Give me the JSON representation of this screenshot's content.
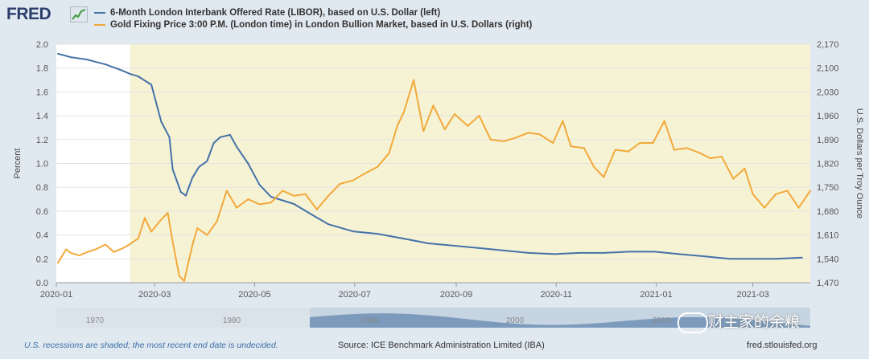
{
  "header": {
    "logo": "FRED",
    "logo_icon": "chart-trend-icon"
  },
  "chart_data": {
    "type": "line",
    "title": "",
    "xlabel": "",
    "ylabel": "Percent",
    "ylabel_right": "U.S. Dollars per Troy Ounce",
    "ylim": [
      0,
      2.0
    ],
    "ylim_right": [
      1470,
      2170
    ],
    "yticks": [
      "0.0",
      "0.2",
      "0.4",
      "0.6",
      "0.8",
      "1.0",
      "1.2",
      "1.4",
      "1.6",
      "1.8",
      "2.0"
    ],
    "yticks_right": [
      "1,470",
      "1,540",
      "1,610",
      "1,680",
      "1,750",
      "1,820",
      "1,890",
      "1,960",
      "2,030",
      "2,100",
      "2,170"
    ],
    "x_ticks": [
      "2020-01",
      "2020-03",
      "2020-05",
      "2020-07",
      "2020-09",
      "2020-11",
      "2021-01",
      "2021-03"
    ],
    "x_range": [
      "2020-01-01",
      "2021-04-05"
    ],
    "recession": [
      "2020-02-15",
      "2021-04-05"
    ],
    "legend_position": "top-left",
    "grid": true,
    "series": [
      {
        "name": "6-Month London Interbank Offered Rate (LIBOR), based on U.S. Dollar (left)",
        "axis": "left",
        "color": "#4572a7",
        "points": [
          [
            "2020-01-02",
            1.92
          ],
          [
            "2020-01-10",
            1.89
          ],
          [
            "2020-01-20",
            1.87
          ],
          [
            "2020-01-31",
            1.83
          ],
          [
            "2020-02-10",
            1.78
          ],
          [
            "2020-02-15",
            1.75
          ],
          [
            "2020-02-20",
            1.73
          ],
          [
            "2020-02-28",
            1.66
          ],
          [
            "2020-03-05",
            1.35
          ],
          [
            "2020-03-10",
            1.22
          ],
          [
            "2020-03-12",
            0.95
          ],
          [
            "2020-03-17",
            0.76
          ],
          [
            "2020-03-20",
            0.73
          ],
          [
            "2020-03-24",
            0.88
          ],
          [
            "2020-03-28",
            0.97
          ],
          [
            "2020-04-02",
            1.02
          ],
          [
            "2020-04-06",
            1.17
          ],
          [
            "2020-04-10",
            1.22
          ],
          [
            "2020-04-16",
            1.24
          ],
          [
            "2020-04-20",
            1.14
          ],
          [
            "2020-04-27",
            1.0
          ],
          [
            "2020-05-04",
            0.82
          ],
          [
            "2020-05-11",
            0.72
          ],
          [
            "2020-05-18",
            0.69
          ],
          [
            "2020-05-25",
            0.66
          ],
          [
            "2020-06-05",
            0.57
          ],
          [
            "2020-06-15",
            0.49
          ],
          [
            "2020-06-30",
            0.43
          ],
          [
            "2020-07-15",
            0.41
          ],
          [
            "2020-07-31",
            0.37
          ],
          [
            "2020-08-15",
            0.33
          ],
          [
            "2020-08-31",
            0.31
          ],
          [
            "2020-09-15",
            0.29
          ],
          [
            "2020-09-30",
            0.27
          ],
          [
            "2020-10-15",
            0.25
          ],
          [
            "2020-10-31",
            0.24
          ],
          [
            "2020-11-15",
            0.25
          ],
          [
            "2020-11-30",
            0.25
          ],
          [
            "2020-12-15",
            0.26
          ],
          [
            "2020-12-31",
            0.26
          ],
          [
            "2021-01-15",
            0.24
          ],
          [
            "2021-01-31",
            0.22
          ],
          [
            "2021-02-15",
            0.2
          ],
          [
            "2021-02-28",
            0.2
          ],
          [
            "2021-03-15",
            0.2
          ],
          [
            "2021-03-31",
            0.21
          ]
        ]
      },
      {
        "name": "Gold Fixing Price 3:00 P.M. (London time) in London Bullion Market, based in U.S. Dollars (right)",
        "axis": "right",
        "color": "#f2a93b",
        "points": [
          [
            "2020-01-02",
            1528
          ],
          [
            "2020-01-07",
            1568
          ],
          [
            "2020-01-10",
            1557
          ],
          [
            "2020-01-15",
            1550
          ],
          [
            "2020-01-20",
            1560
          ],
          [
            "2020-01-25",
            1568
          ],
          [
            "2020-01-31",
            1582
          ],
          [
            "2020-02-05",
            1560
          ],
          [
            "2020-02-10",
            1570
          ],
          [
            "2020-02-14",
            1580
          ],
          [
            "2020-02-20",
            1600
          ],
          [
            "2020-02-24",
            1660
          ],
          [
            "2020-02-28",
            1620
          ],
          [
            "2020-03-04",
            1650
          ],
          [
            "2020-03-09",
            1675
          ],
          [
            "2020-03-12",
            1590
          ],
          [
            "2020-03-16",
            1490
          ],
          [
            "2020-03-19",
            1475
          ],
          [
            "2020-03-24",
            1580
          ],
          [
            "2020-03-27",
            1630
          ],
          [
            "2020-04-02",
            1610
          ],
          [
            "2020-04-08",
            1650
          ],
          [
            "2020-04-14",
            1740
          ],
          [
            "2020-04-20",
            1690
          ],
          [
            "2020-04-27",
            1715
          ],
          [
            "2020-05-04",
            1700
          ],
          [
            "2020-05-11",
            1705
          ],
          [
            "2020-05-18",
            1740
          ],
          [
            "2020-05-25",
            1725
          ],
          [
            "2020-06-01",
            1730
          ],
          [
            "2020-06-08",
            1685
          ],
          [
            "2020-06-15",
            1725
          ],
          [
            "2020-06-22",
            1760
          ],
          [
            "2020-06-30",
            1770
          ],
          [
            "2020-07-07",
            1790
          ],
          [
            "2020-07-15",
            1810
          ],
          [
            "2020-07-22",
            1850
          ],
          [
            "2020-07-27",
            1930
          ],
          [
            "2020-07-31",
            1970
          ],
          [
            "2020-08-06",
            2065
          ],
          [
            "2020-08-12",
            1915
          ],
          [
            "2020-08-18",
            1990
          ],
          [
            "2020-08-25",
            1920
          ],
          [
            "2020-08-31",
            1965
          ],
          [
            "2020-09-08",
            1930
          ],
          [
            "2020-09-15",
            1960
          ],
          [
            "2020-09-22",
            1890
          ],
          [
            "2020-09-30",
            1885
          ],
          [
            "2020-10-07",
            1895
          ],
          [
            "2020-10-15",
            1910
          ],
          [
            "2020-10-22",
            1905
          ],
          [
            "2020-10-30",
            1880
          ],
          [
            "2020-11-05",
            1945
          ],
          [
            "2020-11-10",
            1870
          ],
          [
            "2020-11-18",
            1865
          ],
          [
            "2020-11-24",
            1810
          ],
          [
            "2020-11-30",
            1780
          ],
          [
            "2020-12-07",
            1860
          ],
          [
            "2020-12-15",
            1855
          ],
          [
            "2020-12-22",
            1880
          ],
          [
            "2020-12-30",
            1880
          ],
          [
            "2021-01-06",
            1945
          ],
          [
            "2021-01-12",
            1860
          ],
          [
            "2021-01-20",
            1865
          ],
          [
            "2021-01-28",
            1850
          ],
          [
            "2021-02-03",
            1835
          ],
          [
            "2021-02-10",
            1840
          ],
          [
            "2021-02-17",
            1775
          ],
          [
            "2021-02-24",
            1805
          ],
          [
            "2021-03-01",
            1730
          ],
          [
            "2021-03-08",
            1690
          ],
          [
            "2021-03-15",
            1730
          ],
          [
            "2021-03-22",
            1740
          ],
          [
            "2021-03-29",
            1690
          ],
          [
            "2021-04-05",
            1740
          ]
        ]
      }
    ]
  },
  "navigator": {
    "labels": [
      "1970",
      "1980",
      "1990",
      "2000",
      "2010"
    ]
  },
  "footer": {
    "note": "U.S. recessions are shaded; the most recent end date is undecided.",
    "source": "Source: ICE Benchmark Administration Limited (IBA)",
    "url": "fred.stlouisfed.org"
  },
  "watermark": {
    "text": "财主家的余粮",
    "icon": "wechat-icon"
  },
  "colors": {
    "background": "#e1e9f0",
    "plot_bg": "#ffffff",
    "recession": "#f6f3d5",
    "libor": "#4572a7",
    "gold": "#f2a93b"
  }
}
